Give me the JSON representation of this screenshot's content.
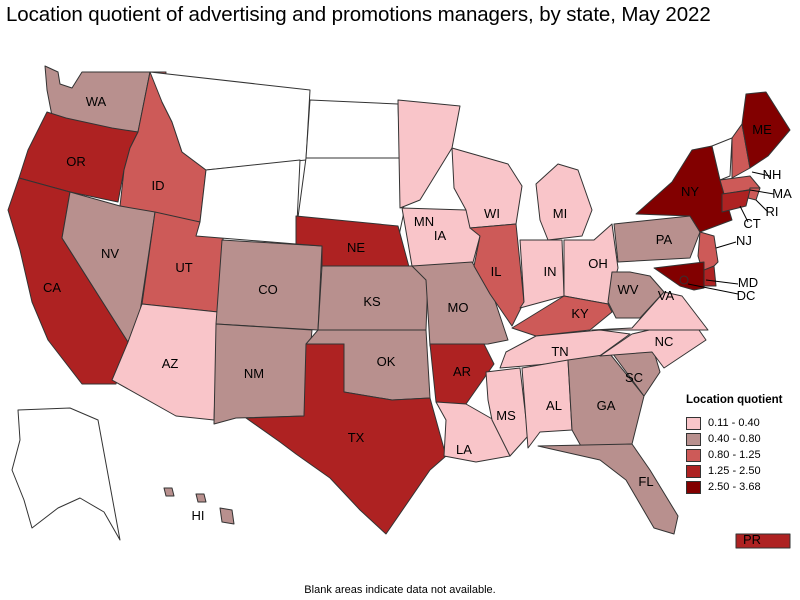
{
  "title": "Location quotient of advertising and promotions managers, by state, May 2022",
  "note": "Blank areas indicate data not available.",
  "colors": {
    "no_data": "#ffffff",
    "c1": "#f9c5c9",
    "c2": "#b8908e",
    "c3": "#cd5a58",
    "c4": "#ae2222",
    "c5": "#820000"
  },
  "legend": {
    "title": "Location quotient",
    "items": [
      {
        "range": "0.11 - 0.40",
        "color": "#f9c5c9"
      },
      {
        "range": "0.40 - 0.80",
        "color": "#b8908e"
      },
      {
        "range": "0.80 - 1.25",
        "color": "#cd5a58"
      },
      {
        "range": "1.25 - 2.50",
        "color": "#ae2222"
      },
      {
        "range": "2.50 - 3.68",
        "color": "#820000"
      }
    ]
  },
  "states": {
    "WA": {
      "label": "WA",
      "class": "0.40 - 0.80"
    },
    "OR": {
      "label": "OR",
      "class": "1.25 - 2.50"
    },
    "CA": {
      "label": "CA",
      "class": "1.25 - 2.50"
    },
    "ID": {
      "label": "ID",
      "class": "0.80 - 1.25"
    },
    "NV": {
      "label": "NV",
      "class": "0.40 - 0.80"
    },
    "UT": {
      "label": "UT",
      "class": "0.80 - 1.25"
    },
    "AZ": {
      "label": "AZ",
      "class": "0.11 - 0.40"
    },
    "MT": {
      "label": "",
      "class": "no data"
    },
    "WY": {
      "label": "",
      "class": "no data"
    },
    "CO": {
      "label": "CO",
      "class": "0.40 - 0.80"
    },
    "NM": {
      "label": "NM",
      "class": "0.40 - 0.80"
    },
    "ND": {
      "label": "",
      "class": "no data"
    },
    "SD": {
      "label": "",
      "class": "no data"
    },
    "NE": {
      "label": "NE",
      "class": "1.25 - 2.50"
    },
    "KS": {
      "label": "KS",
      "class": "0.40 - 0.80"
    },
    "OK": {
      "label": "OK",
      "class": "0.40 - 0.80"
    },
    "TX": {
      "label": "TX",
      "class": "1.25 - 2.50"
    },
    "MN": {
      "label": "MN",
      "class": "0.11 - 0.40"
    },
    "IA": {
      "label": "IA",
      "class": "0.11 - 0.40"
    },
    "MO": {
      "label": "MO",
      "class": "0.40 - 0.80"
    },
    "AR": {
      "label": "AR",
      "class": "1.25 - 2.50"
    },
    "LA": {
      "label": "LA",
      "class": "0.11 - 0.40"
    },
    "WI": {
      "label": "WI",
      "class": "0.11 - 0.40"
    },
    "IL": {
      "label": "IL",
      "class": "0.80 - 1.25"
    },
    "MI": {
      "label": "MI",
      "class": "0.11 - 0.40"
    },
    "IN": {
      "label": "IN",
      "class": "0.11 - 0.40"
    },
    "OH": {
      "label": "OH",
      "class": "0.11 - 0.40"
    },
    "KY": {
      "label": "KY",
      "class": "0.80 - 1.25"
    },
    "TN": {
      "label": "TN",
      "class": "0.11 - 0.40"
    },
    "MS": {
      "label": "MS",
      "class": "0.11 - 0.40"
    },
    "AL": {
      "label": "AL",
      "class": "0.11 - 0.40"
    },
    "GA": {
      "label": "GA",
      "class": "0.40 - 0.80"
    },
    "FL": {
      "label": "FL",
      "class": "0.40 - 0.80"
    },
    "SC": {
      "label": "SC",
      "class": "0.40 - 0.80"
    },
    "NC": {
      "label": "NC",
      "class": "0.11 - 0.40"
    },
    "VA": {
      "label": "VA",
      "class": "0.11 - 0.40"
    },
    "WV": {
      "label": "WV",
      "class": "0.40 - 0.80"
    },
    "PA": {
      "label": "PA",
      "class": "0.40 - 0.80"
    },
    "NY": {
      "label": "NY",
      "class": "2.50 - 3.68"
    },
    "VT": {
      "label": "",
      "class": "no data"
    },
    "NH": {
      "label": "NH",
      "class": "0.80 - 1.25"
    },
    "ME": {
      "label": "ME",
      "class": "2.50 - 3.68"
    },
    "MA": {
      "label": "MA",
      "class": "0.80 - 1.25"
    },
    "RI": {
      "label": "RI",
      "class": "0.80 - 1.25"
    },
    "CT": {
      "label": "CT",
      "class": "1.25 - 2.50"
    },
    "NJ": {
      "label": "NJ",
      "class": "0.80 - 1.25"
    },
    "DE": {
      "label": "",
      "class": "1.25 - 2.50"
    },
    "MD": {
      "label": "MD",
      "class": "2.50 - 3.68"
    },
    "DC": {
      "label": "DC",
      "class": "2.50 - 3.68"
    },
    "AK": {
      "label": "",
      "class": "no data"
    },
    "HI": {
      "label": "HI",
      "class": "0.40 - 0.80"
    },
    "PR": {
      "label": "PR",
      "class": "1.25 - 2.50"
    }
  }
}
